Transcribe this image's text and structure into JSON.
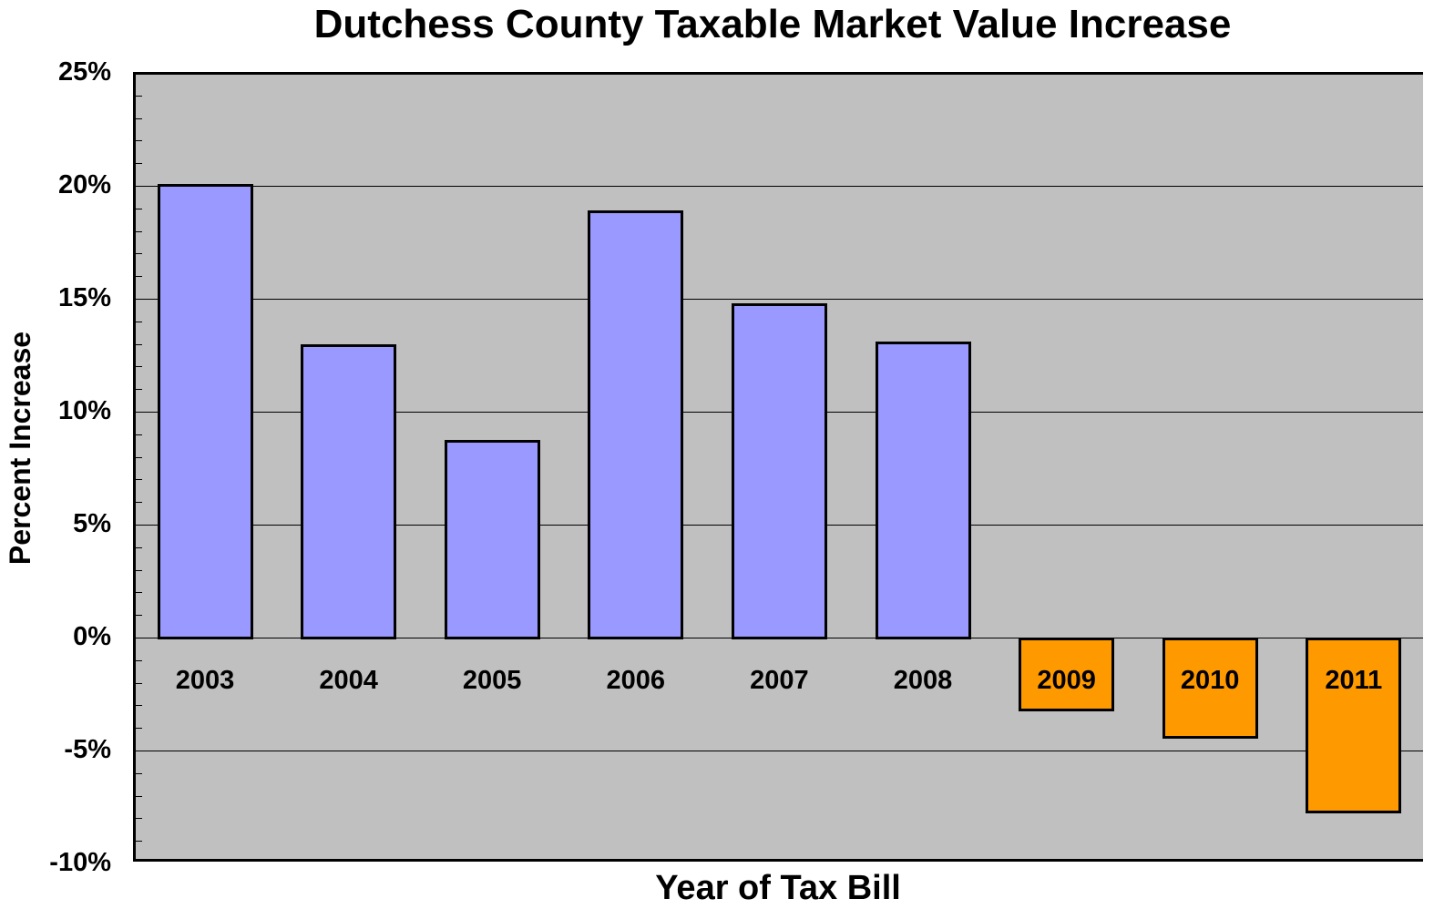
{
  "chart_data": {
    "type": "bar",
    "title": "Dutchess County Taxable Market Value Increase",
    "xlabel": "Year of Tax Bill",
    "ylabel": "Percent Increase",
    "categories": [
      "2003",
      "2004",
      "2005",
      "2006",
      "2007",
      "2008",
      "2009",
      "2010",
      "2011"
    ],
    "values": [
      20.1,
      13.0,
      8.75,
      18.9,
      14.8,
      13.1,
      -3.2,
      -4.4,
      -7.7
    ],
    "value_unit": "%",
    "ylim": [
      -10,
      25
    ],
    "yticks": [
      "25%",
      "20%",
      "15%",
      "10%",
      "5%",
      "0%",
      "-5%",
      "-10%"
    ],
    "ytick_values": [
      25,
      20,
      15,
      10,
      5,
      0,
      -5,
      -10
    ],
    "minor_tick_step": 1,
    "grid": true,
    "legend": null,
    "colors": {
      "positive": "#9999ff",
      "negative": "#ff9900",
      "plot_background": "#c0c0c0",
      "bar_border": "#000000"
    }
  }
}
